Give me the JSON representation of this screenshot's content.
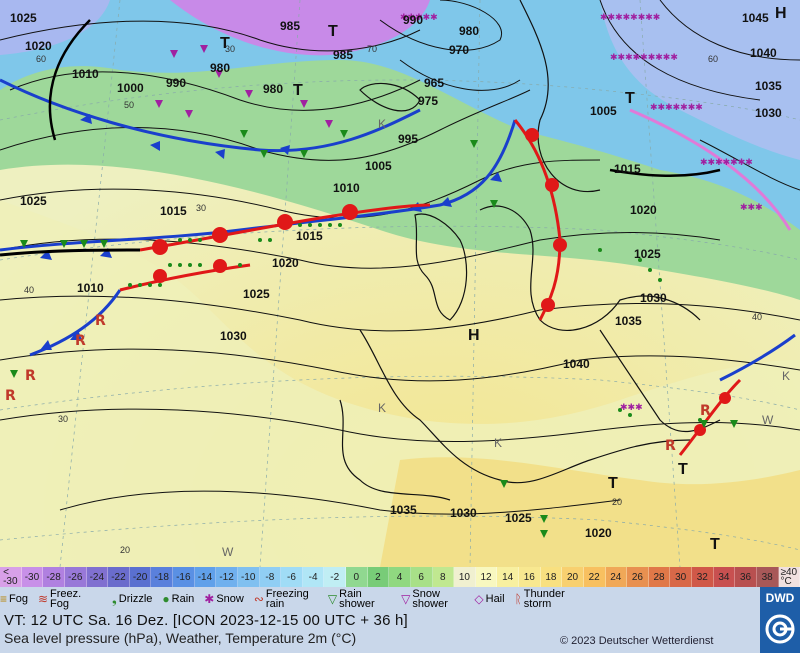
{
  "map": {
    "isobar_labels": [
      "1025",
      "1020",
      "1010",
      "1000",
      "985",
      "990",
      "985",
      "980",
      "980",
      "1005",
      "1005",
      "1010",
      "1015",
      "1015",
      "1025",
      "1030",
      "1035",
      "1040",
      "1045",
      "995",
      "975",
      "965",
      "970",
      "980",
      "990",
      "1020",
      "1025",
      "1030",
      "1035",
      "1040",
      "1015",
      "1010",
      "1020",
      "1025",
      "1030",
      "1035",
      "1030",
      "1025",
      "1020"
    ],
    "pressure_centers": [
      "H",
      "T",
      "T",
      "T",
      "T",
      "T",
      "T",
      "H",
      "T"
    ],
    "temperature_labels": [
      "60",
      "50",
      "30",
      "20",
      "40",
      "40",
      "30",
      "20",
      "30",
      "60",
      "70"
    ],
    "region_marks": [
      "K",
      "K",
      "K",
      "W",
      "W",
      "K"
    ]
  },
  "scale": {
    "values": [
      "<\n-30",
      "-30",
      "-28",
      "-26",
      "-24",
      "-22",
      "-20",
      "-18",
      "-16",
      "-14",
      "-12",
      "-10",
      "-8",
      "-6",
      "-4",
      "-2",
      "0",
      "2",
      "4",
      "6",
      "8",
      "10",
      "12",
      "14",
      "16",
      "18",
      "20",
      "22",
      "24",
      "26",
      "28",
      "30",
      "32",
      "34",
      "36",
      "38",
      "≥40\n°C"
    ],
    "colors": [
      "#d8a0e8",
      "#c890e8",
      "#b080e0",
      "#9878d8",
      "#8070d0",
      "#6a6ccc",
      "#5a70d0",
      "#5a80dc",
      "#5a90e4",
      "#60a0ea",
      "#70b0ee",
      "#80c0f0",
      "#90cef4",
      "#a0dcf6",
      "#b0e6f6",
      "#c0eef4",
      "#90d890",
      "#78cc78",
      "#90d880",
      "#a8e088",
      "#c0e890",
      "#f0f0d0",
      "#f8f8c0",
      "#f8f0a0",
      "#f8e890",
      "#f8e080",
      "#f8d070",
      "#f8c060",
      "#f0a858",
      "#e89050",
      "#e07848",
      "#d86848",
      "#d05848",
      "#c85050",
      "#b85050",
      "#a85858",
      "#f0e0e0"
    ]
  },
  "legend": {
    "items": [
      {
        "symbol": "≡",
        "label": "Fog",
        "color": "#b8860b"
      },
      {
        "symbol": "≋",
        "label": "Freez. Fog",
        "color": "#c0392b"
      },
      {
        "symbol": "❟",
        "label": "Drizzle",
        "color": "#2e8b2e"
      },
      {
        "symbol": "●",
        "label": "Rain",
        "color": "#2e8b2e"
      },
      {
        "symbol": "✱",
        "label": "Snow",
        "color": "#a020a0"
      },
      {
        "symbol": "∾",
        "label": "Freezing rain",
        "color": "#c0392b"
      },
      {
        "symbol": "▽",
        "label": "Rain shower",
        "color": "#2e8b2e"
      },
      {
        "symbol": "▽",
        "label": "Snow shower",
        "color": "#a020a0"
      },
      {
        "symbol": "◇",
        "label": "Hail",
        "color": "#a020a0"
      },
      {
        "symbol": "ᚱ",
        "label": "Thunder storm",
        "color": "#c0392b"
      }
    ]
  },
  "footer": {
    "vt": "VT: 12 UTC Sa.  16 Dez. [ICON 2023-12-15  00 UTC + 36 h]",
    "subtitle": "Sea level pressure (hPa), Weather, Temperature 2m (°C)",
    "copyright": "© 2023 Deutscher Wetterdienst",
    "logo": "DWD"
  }
}
